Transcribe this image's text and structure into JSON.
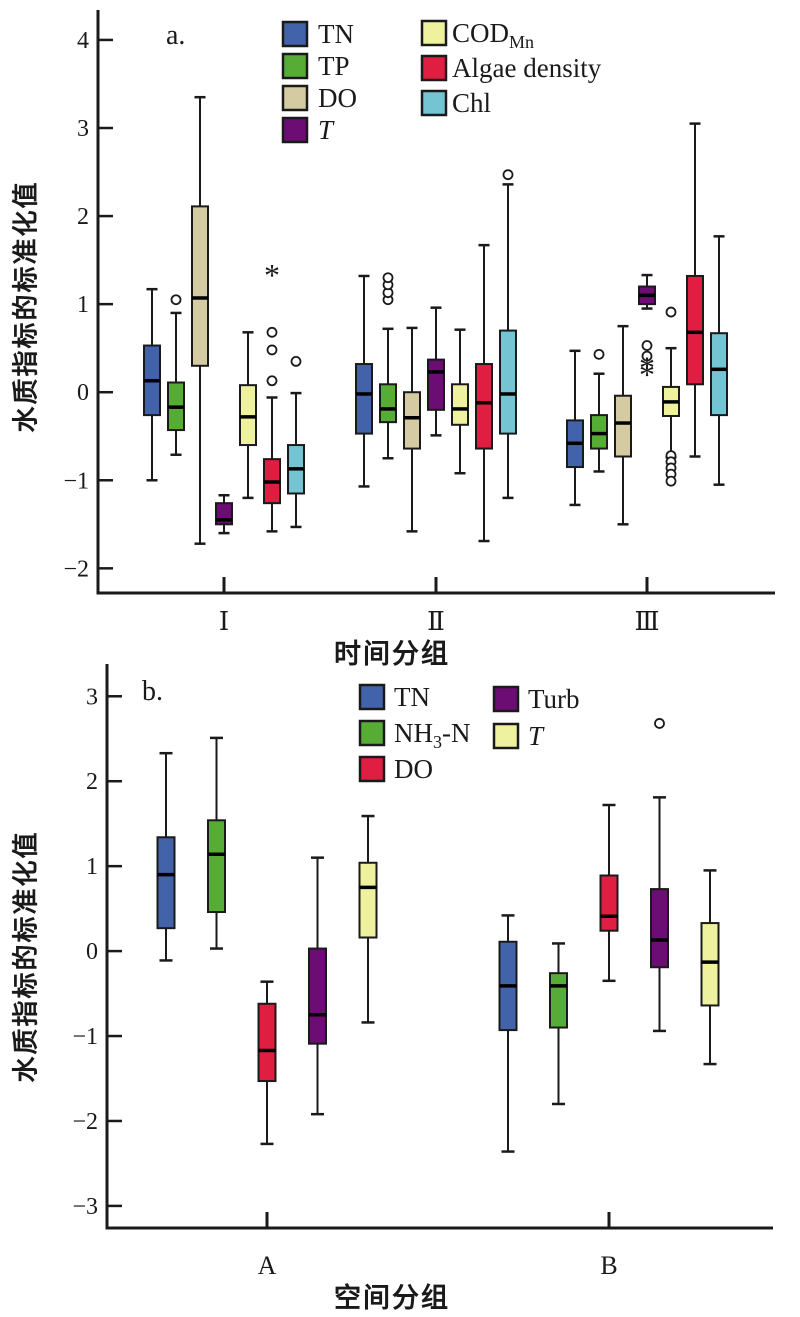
{
  "figure_title": "",
  "labels": {
    "panel_a": "a.",
    "panel_b": "b."
  },
  "chart_data": [
    {
      "id": "a",
      "type": "boxplot",
      "panel_label": "a.",
      "xlabel": "时间分组",
      "ylabel": "水质指标的标准化值",
      "ylim": [
        -2.28,
        4.34
      ],
      "yticks": [
        4,
        3,
        2,
        1,
        0,
        -1,
        -2
      ],
      "grid": false,
      "legend_position": "top-inside",
      "groups": [
        "Ⅰ",
        "Ⅱ",
        "Ⅲ"
      ],
      "series": [
        {
          "name": "TN",
          "color": "#4262AA",
          "label": {
            "main": "TN",
            "sub": "",
            "tail": "",
            "italic": false
          },
          "values": [
            {
              "lo": -1.0,
              "q1": -0.26,
              "med": 0.13,
              "q3": 0.53,
              "hi": 1.17,
              "circles": [],
              "stars": []
            },
            {
              "lo": -1.07,
              "q1": -0.47,
              "med": -0.02,
              "q3": 0.32,
              "hi": 1.32,
              "circles": [],
              "stars": []
            },
            {
              "lo": -1.28,
              "q1": -0.85,
              "med": -0.58,
              "q3": -0.32,
              "hi": 0.47,
              "circles": [],
              "stars": []
            }
          ]
        },
        {
          "name": "TP",
          "color": "#57AC35",
          "label": {
            "main": "TP",
            "sub": "",
            "tail": "",
            "italic": false
          },
          "values": [
            {
              "lo": -0.71,
              "q1": -0.43,
              "med": -0.17,
              "q3": 0.11,
              "hi": 0.9,
              "circles": [
                1.05
              ],
              "stars": []
            },
            {
              "lo": -0.75,
              "q1": -0.34,
              "med": -0.19,
              "q3": 0.09,
              "hi": 0.72,
              "circles": [
                1.05,
                1.13,
                1.22,
                1.3
              ],
              "stars": []
            },
            {
              "lo": -0.9,
              "q1": -0.64,
              "med": -0.47,
              "q3": -0.26,
              "hi": 0.21,
              "circles": [
                0.43
              ],
              "stars": []
            }
          ]
        },
        {
          "name": "DO",
          "color": "#D4CBA3",
          "label": {
            "main": "DO",
            "sub": "",
            "tail": "",
            "italic": false
          },
          "values": [
            {
              "lo": -1.72,
              "q1": 0.3,
              "med": 1.07,
              "q3": 2.11,
              "hi": 3.35,
              "circles": [],
              "stars": []
            },
            {
              "lo": -1.58,
              "q1": -0.64,
              "med": -0.29,
              "q3": 0.0,
              "hi": 0.73,
              "circles": [],
              "stars": []
            },
            {
              "lo": -1.5,
              "q1": -0.73,
              "med": -0.35,
              "q3": -0.04,
              "hi": 0.75,
              "circles": [],
              "stars": []
            }
          ]
        },
        {
          "name": "T",
          "color": "#6C0D74",
          "label": {
            "main": "T",
            "sub": "",
            "tail": "",
            "italic": true
          },
          "values": [
            {
              "lo": -1.6,
              "q1": -1.5,
              "med": -1.45,
              "q3": -1.26,
              "hi": -1.17,
              "circles": [],
              "stars": []
            },
            {
              "lo": -0.49,
              "q1": -0.2,
              "med": 0.23,
              "q3": 0.37,
              "hi": 0.96,
              "circles": [],
              "stars": []
            },
            {
              "lo": 0.95,
              "q1": 1.0,
              "med": 1.1,
              "q3": 1.2,
              "hi": 1.33,
              "circles": [
                0.53,
                0.41
              ],
              "stars": [
                0.27,
                0.19
              ]
            }
          ]
        },
        {
          "name": "COD_Mn",
          "color": "#EEF19E",
          "label": {
            "main": "COD",
            "sub": "Mn",
            "tail": "",
            "italic": false
          },
          "values": [
            {
              "lo": -1.2,
              "q1": -0.6,
              "med": -0.28,
              "q3": 0.08,
              "hi": 0.68,
              "circles": [],
              "stars": []
            },
            {
              "lo": -0.92,
              "q1": -0.37,
              "med": -0.19,
              "q3": 0.09,
              "hi": 0.71,
              "circles": [],
              "stars": []
            },
            {
              "lo": -0.74,
              "q1": -0.27,
              "med": -0.11,
              "q3": 0.06,
              "hi": 0.5,
              "circles": [
                0.91,
                -0.72,
                -0.79,
                -0.86,
                -0.93,
                -1.01
              ],
              "stars": []
            }
          ]
        },
        {
          "name": "Algae density",
          "color": "#E01E41",
          "label": {
            "main": "Algae density",
            "sub": "",
            "tail": "",
            "italic": false
          },
          "values": [
            {
              "lo": -1.58,
              "q1": -1.26,
              "med": -1.02,
              "q3": -0.76,
              "hi": -0.06,
              "circles": [
                0.68,
                0.48,
                0.13
              ],
              "stars": [
                1.32
              ]
            },
            {
              "lo": -1.69,
              "q1": -0.64,
              "med": -0.12,
              "q3": 0.32,
              "hi": 1.67,
              "circles": [],
              "stars": []
            },
            {
              "lo": -0.73,
              "q1": 0.09,
              "med": 0.68,
              "q3": 1.32,
              "hi": 3.05,
              "circles": [],
              "stars": []
            }
          ]
        },
        {
          "name": "Chl",
          "color": "#74C4D3",
          "label": {
            "main": "Chl",
            "sub": "",
            "tail": "",
            "italic": false
          },
          "values": [
            {
              "lo": -1.53,
              "q1": -1.15,
              "med": -0.87,
              "q3": -0.6,
              "hi": -0.01,
              "circles": [
                0.35
              ],
              "stars": []
            },
            {
              "lo": -1.2,
              "q1": -0.47,
              "med": -0.02,
              "q3": 0.7,
              "hi": 2.36,
              "circles": [
                2.47
              ],
              "stars": []
            },
            {
              "lo": -1.05,
              "q1": -0.26,
              "med": 0.26,
              "q3": 0.67,
              "hi": 1.77,
              "circles": [],
              "stars": []
            }
          ]
        }
      ]
    },
    {
      "id": "b",
      "type": "boxplot",
      "panel_label": "b.",
      "xlabel": "空间分组",
      "ylabel": "水质指标的标准化值",
      "ylim": [
        -3.26,
        3.38
      ],
      "yticks": [
        3,
        2,
        1,
        0,
        -1,
        -2,
        -3
      ],
      "grid": false,
      "legend_position": "top-inside",
      "groups": [
        "A",
        "B"
      ],
      "series": [
        {
          "name": "TN",
          "color": "#4262AA",
          "label": {
            "main": "TN",
            "sub": "",
            "tail": "",
            "italic": false
          },
          "values": [
            {
              "lo": -0.11,
              "q1": 0.27,
              "med": 0.9,
              "q3": 1.34,
              "hi": 2.33,
              "circles": [],
              "stars": []
            },
            {
              "lo": -2.36,
              "q1": -0.93,
              "med": -0.41,
              "q3": 0.11,
              "hi": 0.42,
              "circles": [],
              "stars": []
            }
          ]
        },
        {
          "name": "NH3-N",
          "color": "#57AC35",
          "label": {
            "main": "NH",
            "sub": "3",
            "tail": "-N",
            "italic": false
          },
          "values": [
            {
              "lo": 0.03,
              "q1": 0.46,
              "med": 1.14,
              "q3": 1.54,
              "hi": 2.51,
              "circles": [],
              "stars": []
            },
            {
              "lo": -1.8,
              "q1": -0.9,
              "med": -0.41,
              "q3": -0.26,
              "hi": 0.09,
              "circles": [],
              "stars": []
            }
          ]
        },
        {
          "name": "DO",
          "color": "#E01E41",
          "label": {
            "main": "DO",
            "sub": "",
            "tail": "",
            "italic": false
          },
          "values": [
            {
              "lo": -2.27,
              "q1": -1.53,
              "med": -1.17,
              "q3": -0.62,
              "hi": -0.36,
              "circles": [],
              "stars": []
            },
            {
              "lo": -0.35,
              "q1": 0.24,
              "med": 0.41,
              "q3": 0.89,
              "hi": 1.72,
              "circles": [],
              "stars": []
            }
          ]
        },
        {
          "name": "Turb",
          "color": "#6C0D74",
          "label": {
            "main": "Turb",
            "sub": "",
            "tail": "",
            "italic": false
          },
          "values": [
            {
              "lo": -1.92,
              "q1": -1.09,
              "med": -0.75,
              "q3": 0.03,
              "hi": 1.1,
              "circles": [],
              "stars": []
            },
            {
              "lo": -0.94,
              "q1": -0.19,
              "med": 0.13,
              "q3": 0.73,
              "hi": 1.81,
              "circles": [
                2.68
              ],
              "stars": []
            }
          ]
        },
        {
          "name": "T",
          "color": "#EEF19E",
          "label": {
            "main": "T",
            "sub": "",
            "tail": "",
            "italic": true
          },
          "values": [
            {
              "lo": -0.84,
              "q1": 0.16,
              "med": 0.75,
              "q3": 1.04,
              "hi": 1.59,
              "circles": [],
              "stars": []
            },
            {
              "lo": -1.33,
              "q1": -0.64,
              "med": -0.13,
              "q3": 0.33,
              "hi": 0.95,
              "circles": [],
              "stars": []
            }
          ]
        }
      ]
    }
  ]
}
